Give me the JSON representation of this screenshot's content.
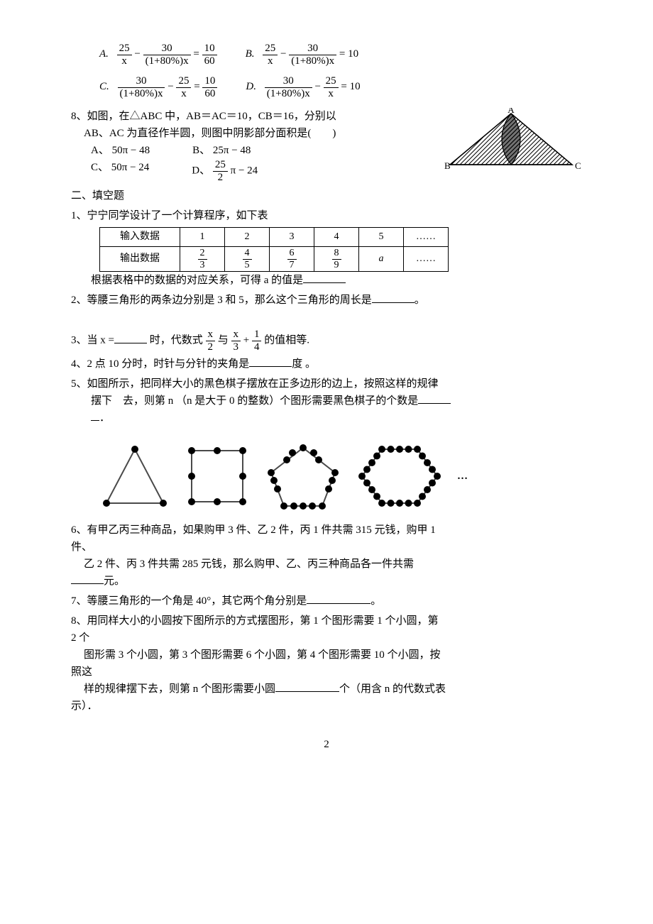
{
  "q7": {
    "A": {
      "lhs1_num": "25",
      "lhs1_den": "x",
      "op": "−",
      "lhs2_num": "30",
      "lhs2_den": "(1+80%)x",
      "eq": "=",
      "rhs_num": "10",
      "rhs_den": "60"
    },
    "B": {
      "lhs1_num": "25",
      "lhs1_den": "x",
      "op": "−",
      "lhs2_num": "30",
      "lhs2_den": "(1+80%)x",
      "eq": "= 10"
    },
    "C": {
      "lhs1_num": "30",
      "lhs1_den": "(1+80%)x",
      "op": "−",
      "lhs2_num": "25",
      "lhs2_den": "x",
      "eq": "=",
      "rhs_num": "10",
      "rhs_den": "60"
    },
    "D": {
      "lhs1_num": "30",
      "lhs1_den": "(1+80%)x",
      "op": "−",
      "lhs2_num": "25",
      "lhs2_den": "x",
      "eq": "= 10"
    },
    "labels": {
      "A": "A.",
      "B": "B.",
      "C": "C.",
      "D": "D."
    }
  },
  "q8": {
    "num": "8、",
    "stem1": "如图，在△ABC 中，AB＝AC＝10，CB＝16，分别以",
    "stem2": "AB、AC 为直径作半圆，则图中阴影部分面积是(　　)",
    "opts": {
      "A": "A、 50π − 48",
      "B": "B、 25π − 48",
      "C": "C、 50π − 24",
      "D_prefix": "D、",
      "D_frac_num": "25",
      "D_frac_den": "2",
      "D_suffix": "π − 24"
    },
    "fig_labels": {
      "A": "A",
      "B": "B",
      "C": "C"
    },
    "fig_colors": {
      "stroke": "#000000",
      "fill": "#ffffff"
    }
  },
  "section2_title": "二、填空题",
  "f1": {
    "num": "1、",
    "stem": "宁宁同学设计了一个计算程序，如下表",
    "row_in_label": "输入数据",
    "row_out_label": "输出数据",
    "in": [
      "1",
      "2",
      "3",
      "4",
      "5",
      "……"
    ],
    "out_num": [
      "2",
      "4",
      "6",
      "8"
    ],
    "out_den": [
      "3",
      "5",
      "7",
      "9"
    ],
    "a": "a",
    "dots": "……",
    "tail": "根据表格中的数据的对应关系，可得 a 的值是"
  },
  "f2": {
    "num": "2、",
    "stem": "等腰三角形的两条边分别是 3 和 5，那么这个三角形的周长是",
    "end": "。"
  },
  "f3": {
    "num": "3、",
    "prefix": "当 x =",
    "mid": "时，代数式",
    "frac1_num": "x",
    "frac1_den": "2",
    "and": "与",
    "frac2a_num": "x",
    "frac2a_den": "3",
    "plus": "+",
    "frac2b_num": "1",
    "frac2b_den": "4",
    "suffix": "的值相等."
  },
  "f4": {
    "num": "4、",
    "stem": "2 点 10 分时，时针与分针的夹角是",
    "unit": "度 。"
  },
  "f5": {
    "num": "5、",
    "line1": "如图所示，把同样大小的黑色棋子摆放在正多边形的边上，按照这样的规律",
    "line2_a": "摆下　去，则第 n （n 是大于 0 的整数）个图形需要黑色棋子的个数是",
    "line3": "．",
    "ell": "…",
    "polygon_colors": {
      "dot": "#000000",
      "line": "#4a4a4a"
    }
  },
  "f6": {
    "num": "6、",
    "line1": "有甲乙丙三种商品，如果购甲 3 件、乙 2 件，丙 1 件共需 315 元钱，购甲 1",
    "line1b": "件、",
    "line2": "乙 2 件、丙 3 件共需 285 元钱，那么购甲、乙、丙三种商品各一件共需",
    "unit": "元。"
  },
  "f7": {
    "num": "7、",
    "stem": "等腰三角形的一个角是 40°，其它两个角分别是",
    "end": "。"
  },
  "f8": {
    "num": "8、",
    "line1": "用同样大小的小圆按下图所示的方式摆图形，第 1 个图形需要 1 个小圆，第",
    "line1b": "2 个",
    "line2": "图形需 3 个小圆，第 3 个图形需要 6 个小圆，第 4 个图形需要 10 个小圆，按",
    "line2b": "照这",
    "line3a": "样的规律摆下去，则第 n 个图形需要小圆",
    "line3b": "个（用含 n 的代数式表",
    "line3c": "示）．"
  },
  "pagenum": "2"
}
